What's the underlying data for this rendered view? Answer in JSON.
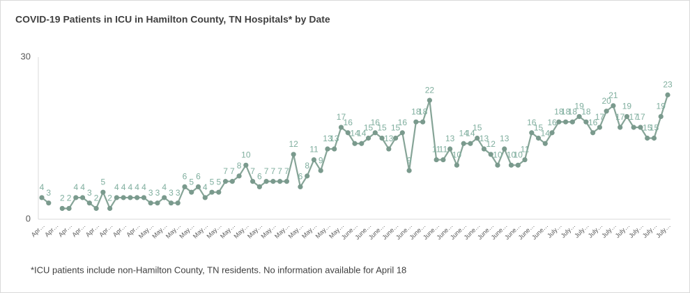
{
  "chart_data": {
    "type": "line",
    "title": "COVID-19 Patients in ICU in Hamilton County, TN Hospitals* by Date",
    "footnote": "*ICU patients include non-Hamilton County, TN residents. No information available for April 18",
    "categories": [
      "Apr…",
      null,
      "Apr…",
      null,
      "Apr…",
      null,
      "Apr…",
      null,
      "Apr…",
      null,
      "Apr…",
      null,
      "Apr…",
      null,
      "Apr…",
      null,
      "May…",
      null,
      "May…",
      null,
      "May…",
      null,
      "May…",
      null,
      "May…",
      null,
      "May…",
      null,
      "May…",
      null,
      "May…",
      null,
      "May…",
      null,
      "May…",
      null,
      "May…",
      null,
      "May…",
      null,
      "May…",
      null,
      "May…",
      null,
      "May…",
      null,
      "June…",
      null,
      "June…",
      null,
      "June…",
      null,
      "June…",
      null,
      "June…",
      null,
      "June…",
      null,
      "June…",
      null,
      "June…",
      null,
      "June…",
      null,
      "June…",
      null,
      "June…",
      null,
      "June…",
      null,
      "June…",
      null,
      "June…",
      null,
      "June…",
      null,
      "July…",
      null,
      "July…",
      null,
      "July…",
      null,
      "July…",
      null,
      "July…",
      null,
      "July…",
      null,
      "July…",
      null,
      "July…",
      null,
      "July…"
    ],
    "series": [
      {
        "name": "ICU patients",
        "color": "#86a497",
        "values": [
          4,
          3,
          null,
          2,
          2,
          4,
          4,
          3,
          2,
          5,
          2,
          4,
          4,
          4,
          4,
          4,
          3,
          3,
          4,
          3,
          3,
          6,
          5,
          6,
          4,
          5,
          5,
          7,
          7,
          8,
          10,
          7,
          6,
          7,
          7,
          7,
          7,
          12,
          6,
          8,
          11,
          9,
          13,
          13,
          17,
          16,
          14,
          14,
          15,
          16,
          15,
          13,
          15,
          16,
          9,
          18,
          18,
          22,
          11,
          11,
          13,
          10,
          14,
          14,
          15,
          13,
          12,
          10,
          13,
          10,
          10,
          11,
          16,
          15,
          14,
          16,
          18,
          18,
          18,
          19,
          18,
          16,
          17,
          20,
          21,
          17,
          19,
          17,
          17,
          15,
          15,
          19,
          23
        ]
      }
    ],
    "ylim": [
      0,
      30
    ],
    "yticks": [
      0,
      30
    ],
    "grid": false
  }
}
